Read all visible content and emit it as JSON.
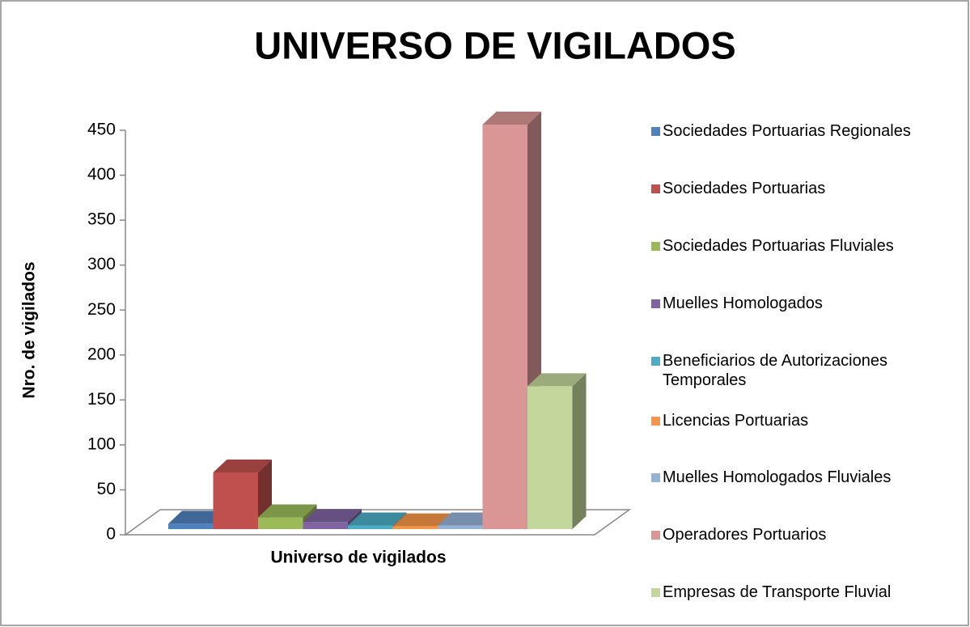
{
  "chart_data": {
    "type": "bar3d",
    "title": "UNIVERSO DE VIGILADOS",
    "y_axis_label": "Nro. de vigilados",
    "categories": [
      "Universo de vigilados"
    ],
    "series": [
      {
        "name": "Sociedades Portuarias Regionales",
        "color": "#4f81bd",
        "values": [
          6
        ]
      },
      {
        "name": "Sociedades Portuarias",
        "color": "#c0504d",
        "values": [
          63
        ]
      },
      {
        "name": "Sociedades Portuarias Fluviales",
        "color": "#9bbb59",
        "values": [
          13
        ]
      },
      {
        "name": "Muelles Homologados",
        "color": "#8064a2",
        "values": [
          8
        ]
      },
      {
        "name": "Beneficiarios de Autorizaciones Temporales",
        "color": "#4bacc6",
        "values": [
          4
        ]
      },
      {
        "name": "Licencias Portuarias",
        "color": "#f79646",
        "values": [
          3
        ]
      },
      {
        "name": "Muelles Homologados Fluviales",
        "color": "#95b3d7",
        "values": [
          4
        ]
      },
      {
        "name": "Operadores Portuarios",
        "color": "#d99694",
        "values": [
          450
        ]
      },
      {
        "name": "Empresas de Transporte Fluvial",
        "color": "#c3d69b",
        "values": [
          159
        ]
      }
    ],
    "ylim": [
      0,
      450
    ],
    "yticks": [
      0,
      50,
      100,
      150,
      200,
      250,
      300,
      350,
      400,
      450
    ],
    "legend": "right"
  }
}
